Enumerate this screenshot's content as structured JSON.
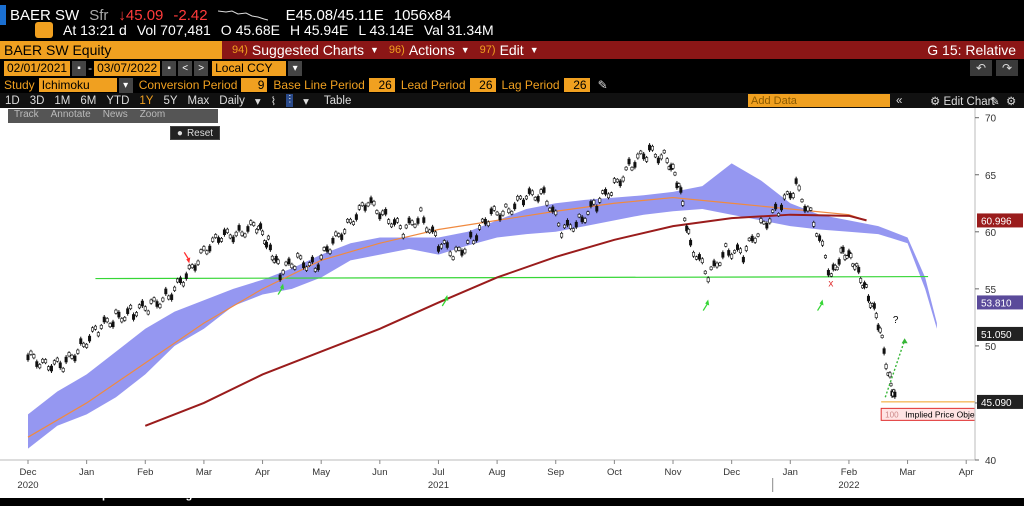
{
  "quote": {
    "ticker": "BAER SW",
    "suffix": "Sfr",
    "last": "↓45.09",
    "change": "-2.42",
    "bid_ask": "E45.08/45.11E",
    "size": "1056x84"
  },
  "atline": {
    "time": "At 13:21 d",
    "volume": "Vol 707,481",
    "open": "O 45.68E",
    "high": "H 45.94E",
    "low": "L 43.14E",
    "value": "Val 31.34M"
  },
  "toolbar": {
    "equity": "BAER SW Equity",
    "menus": [
      {
        "num": "94)",
        "label": "Suggested Charts"
      },
      {
        "num": "96)",
        "label": "Actions"
      },
      {
        "num": "97)",
        "label": "Edit"
      }
    ],
    "right_label": "G 15: Relative"
  },
  "range": {
    "start": "02/01/2021",
    "end": "03/07/2022",
    "currency": "Local CCY"
  },
  "study": {
    "label": "Study",
    "name": "Ichimoku",
    "conv_label": "Conversion Period",
    "conv": "9",
    "base_label": "Base Line Period",
    "base": "26",
    "lead_label": "Lead Period",
    "lead": "26",
    "lag_label": "Lag Period",
    "lag": "26"
  },
  "periods": [
    "1D",
    "3D",
    "1M",
    "6M",
    "YTD",
    "1Y",
    "5Y",
    "Max",
    "Daily"
  ],
  "period_selected": "1Y",
  "table_label": "Table",
  "add_data_placeholder": "Add Data",
  "edit_chart_label": "Edit Chart",
  "tools": [
    "Track",
    "Annotate",
    "News",
    "Zoom"
  ],
  "reset_label": "Reset",
  "source": "Source : Stouff Capital - Bloomberg",
  "colors": {
    "price": "#ffffff",
    "cloud": "#8a8cf0",
    "ma_fast": "#f08a40",
    "ma_slow": "#9a1c1c",
    "support": "#36d636",
    "bg": "#000000"
  },
  "chart_data": {
    "type": "line",
    "y_ticks": [
      40,
      45,
      50,
      55,
      60,
      65,
      70
    ],
    "ylim": [
      40,
      70.5
    ],
    "x_months": [
      "Dec",
      "Jan",
      "Feb",
      "Mar",
      "Apr",
      "May",
      "Jun",
      "Jul",
      "Aug",
      "Sep",
      "Oct",
      "Nov",
      "Dec",
      "Jan",
      "Feb",
      "Mar",
      "Apr"
    ],
    "years": [
      {
        "label": "2020",
        "month": 0
      },
      {
        "label": "2021",
        "month": 7
      },
      {
        "label": "2022",
        "month": 14
      }
    ],
    "labels": [
      {
        "value": 60.996,
        "text": "60.996",
        "color": "#9a1c1c"
      },
      {
        "value": 53.81,
        "text": "53.810",
        "color": "#5a4a9a"
      },
      {
        "value": 51.05,
        "text": "51.050",
        "color": "#222222"
      },
      {
        "value": 45.09,
        "text": "45.090",
        "color": "#222222"
      }
    ],
    "support_level": 55.9,
    "price_objective": {
      "value": 44.0,
      "label": "Implied Price Objective",
      "tag": "100"
    },
    "annotations": [
      {
        "text": "?",
        "month": 14.75,
        "value": 52.0
      },
      {
        "text": "x",
        "month": 13.65,
        "value": 55.2
      }
    ],
    "price_path": [
      [
        0,
        49
      ],
      [
        0.3,
        48.5
      ],
      [
        0.6,
        48.2
      ],
      [
        0.9,
        50
      ],
      [
        1.2,
        51.5
      ],
      [
        1.5,
        52.5
      ],
      [
        1.8,
        53
      ],
      [
        2.1,
        53.5
      ],
      [
        2.4,
        54.5
      ],
      [
        2.7,
        56
      ],
      [
        3,
        58.5
      ],
      [
        3.3,
        59.5
      ],
      [
        3.6,
        60
      ],
      [
        3.9,
        60.5
      ],
      [
        4.1,
        59
      ],
      [
        4.3,
        56.5
      ],
      [
        4.6,
        57.5
      ],
      [
        4.9,
        57
      ],
      [
        5.2,
        59
      ],
      [
        5.5,
        61
      ],
      [
        5.8,
        62.5
      ],
      [
        6.1,
        61.5
      ],
      [
        6.4,
        60
      ],
      [
        6.7,
        61.5
      ],
      [
        7,
        59
      ],
      [
        7.3,
        58
      ],
      [
        7.6,
        59.5
      ],
      [
        7.9,
        61.5
      ],
      [
        8.2,
        62
      ],
      [
        8.5,
        63
      ],
      [
        8.8,
        63.5
      ],
      [
        9.1,
        60
      ],
      [
        9.4,
        61
      ],
      [
        9.7,
        62.5
      ],
      [
        10,
        64
      ],
      [
        10.3,
        66
      ],
      [
        10.6,
        67
      ],
      [
        10.9,
        66.5
      ],
      [
        11.1,
        64
      ],
      [
        11.3,
        59
      ],
      [
        11.6,
        56
      ],
      [
        11.9,
        58.5
      ],
      [
        12.2,
        58
      ],
      [
        12.5,
        60.5
      ],
      [
        12.8,
        62
      ],
      [
        13.1,
        64
      ],
      [
        13.4,
        61
      ],
      [
        13.7,
        56
      ],
      [
        13.9,
        58.5
      ],
      [
        14.1,
        57
      ],
      [
        14.3,
        55
      ],
      [
        14.5,
        52
      ],
      [
        14.7,
        47
      ],
      [
        14.8,
        45
      ]
    ],
    "cloud_upper": [
      [
        0,
        44
      ],
      [
        0.5,
        46
      ],
      [
        1,
        47.5
      ],
      [
        1.5,
        49.5
      ],
      [
        2,
        51.5
      ],
      [
        2.5,
        53
      ],
      [
        3,
        54
      ],
      [
        3.5,
        55
      ],
      [
        4,
        55.8
      ],
      [
        4.5,
        56.8
      ],
      [
        5,
        58
      ],
      [
        5.5,
        59
      ],
      [
        6,
        59.5
      ],
      [
        6.5,
        59.5
      ],
      [
        7,
        59.5
      ],
      [
        7.5,
        60
      ],
      [
        8,
        61
      ],
      [
        8.5,
        62
      ],
      [
        9,
        62.5
      ],
      [
        9.5,
        62.8
      ],
      [
        10,
        63
      ],
      [
        10.5,
        63.2
      ],
      [
        11,
        63.5
      ],
      [
        11.5,
        64
      ],
      [
        12,
        66
      ],
      [
        12.5,
        64.5
      ],
      [
        13,
        62.5
      ],
      [
        13.5,
        61.5
      ],
      [
        14,
        61
      ],
      [
        14.5,
        60.5
      ],
      [
        15,
        59.5
      ],
      [
        15.3,
        56
      ],
      [
        15.5,
        52
      ]
    ],
    "cloud_lower": [
      [
        0,
        41
      ],
      [
        0.5,
        43
      ],
      [
        1,
        44
      ],
      [
        1.5,
        45.5
      ],
      [
        2,
        47.5
      ],
      [
        2.5,
        50
      ],
      [
        3,
        51.5
      ],
      [
        3.5,
        53.5
      ],
      [
        4,
        54.5
      ],
      [
        4.5,
        55
      ],
      [
        5,
        56
      ],
      [
        5.5,
        57.5
      ],
      [
        6,
        58
      ],
      [
        6.5,
        58.5
      ],
      [
        7,
        58
      ],
      [
        7.5,
        58.8
      ],
      [
        8,
        59.5
      ],
      [
        8.5,
        59.8
      ],
      [
        9,
        60
      ],
      [
        9.5,
        60.5
      ],
      [
        10,
        61
      ],
      [
        10.5,
        61.5
      ],
      [
        11,
        61.8
      ],
      [
        11.5,
        62
      ],
      [
        12,
        61.5
      ],
      [
        12.5,
        61
      ],
      [
        13,
        60.5
      ],
      [
        13.5,
        60.2
      ],
      [
        14,
        60
      ],
      [
        14.5,
        59.8
      ],
      [
        15,
        59
      ],
      [
        15.3,
        55
      ],
      [
        15.5,
        51.5
      ]
    ],
    "ma_fast": [
      [
        0,
        42
      ],
      [
        1,
        45
      ],
      [
        2,
        48.5
      ],
      [
        3,
        52
      ],
      [
        4,
        55
      ],
      [
        5,
        57.5
      ],
      [
        6,
        59
      ],
      [
        7,
        60.2
      ],
      [
        8,
        61
      ],
      [
        9,
        61.8
      ],
      [
        10,
        62.5
      ],
      [
        11,
        63
      ],
      [
        12,
        62.5
      ],
      [
        13,
        62
      ],
      [
        14,
        61.5
      ],
      [
        14.3,
        61
      ]
    ],
    "ma_slow": [
      [
        2,
        43
      ],
      [
        3,
        45
      ],
      [
        4,
        47.5
      ],
      [
        5,
        49.5
      ],
      [
        6,
        51.5
      ],
      [
        7,
        53.8
      ],
      [
        8,
        56
      ],
      [
        9,
        57.8
      ],
      [
        10,
        59.3
      ],
      [
        11,
        60.5
      ],
      [
        12,
        61.2
      ],
      [
        13,
        61.5
      ],
      [
        14,
        61.4
      ],
      [
        14.3,
        61
      ]
    ],
    "arrows": [
      {
        "month": 2.75,
        "value": 57.5,
        "dir": "down",
        "color": "#ff3030"
      },
      {
        "month": 4.35,
        "value": 55.2,
        "dir": "up",
        "color": "#36d636"
      },
      {
        "month": 7.15,
        "value": 54.2,
        "dir": "up",
        "color": "#36d636"
      },
      {
        "month": 11.6,
        "value": 53.8,
        "dir": "up",
        "color": "#36d636"
      },
      {
        "month": 13.55,
        "value": 53.8,
        "dir": "up",
        "color": "#36d636"
      }
    ]
  }
}
